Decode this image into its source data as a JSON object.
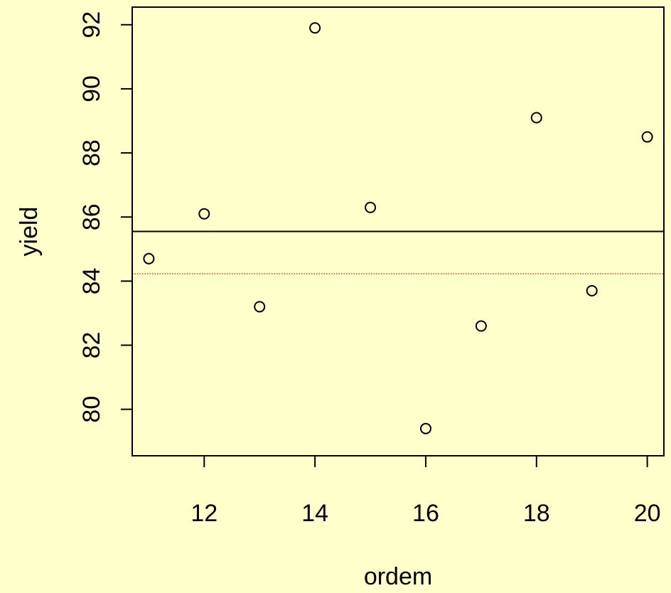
{
  "chart_data": {
    "type": "scatter",
    "title": "",
    "xlabel": "ordem",
    "ylabel": "yield",
    "x": [
      11,
      12,
      13,
      14,
      15,
      16,
      17,
      18,
      19,
      20
    ],
    "y": [
      84.7,
      86.1,
      83.2,
      91.9,
      86.3,
      79.4,
      82.6,
      89.1,
      83.7,
      88.5
    ],
    "xlim": [
      10.7,
      20.3
    ],
    "ylim": [
      78.55,
      92.55
    ],
    "x_ticks": [
      12,
      14,
      16,
      18,
      20
    ],
    "x_tick_labels": [
      "12",
      "14",
      "16",
      "18",
      "20"
    ],
    "y_ticks": [
      80,
      82,
      84,
      86,
      88,
      90,
      92
    ],
    "y_tick_labels": [
      "80",
      "82",
      "84",
      "86",
      "88",
      "90",
      "92"
    ],
    "reference_lines": [
      {
        "kind": "horizontal",
        "y": 85.55,
        "style": "solid",
        "color": "#000000"
      },
      {
        "kind": "horizontal",
        "y": 84.23,
        "style": "dotted",
        "color": "#ff0000"
      }
    ],
    "grid": false,
    "legend": "none",
    "background_color": "#ffffcc",
    "point_style": "open-circle",
    "point_color": "#000000"
  }
}
